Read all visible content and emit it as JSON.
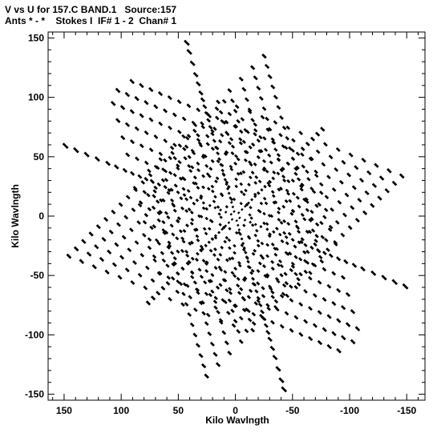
{
  "chart_data": {
    "type": "scatter",
    "title_line1": "V vs U for 157.C BAND.1   Source:157",
    "title_line2": "Ants * - *    Stokes I  IF# 1 - 2  Chan# 1",
    "xlabel": "Kilo Wavlngth",
    "ylabel": "Kilo Wavlngth",
    "xlim": [
      164,
      -166
    ],
    "ylim": [
      -155,
      155
    ],
    "xticks": [
      150,
      100,
      50,
      0,
      -50,
      -100,
      -150
    ],
    "yticks": [
      150,
      100,
      50,
      0,
      -50,
      -100,
      -150
    ],
    "xtick_labels": [
      "150",
      "100",
      "50",
      "0",
      "-50",
      "-100",
      "-150"
    ],
    "ytick_labels": [
      "150",
      "100",
      "50",
      "0",
      "-50",
      "-100",
      "-150"
    ],
    "arms": [
      {
        "dir": [
          0.28,
          0.96
        ],
        "radii": [
          4,
          8,
          12,
          16,
          20,
          24,
          28,
          32,
          36,
          40,
          45,
          50,
          55,
          60,
          66,
          72,
          78,
          84,
          90,
          96,
          102,
          108,
          116,
          124,
          134,
          144,
          152
        ]
      },
      {
        "dir": [
          0.93,
          0.37
        ],
        "radii": [
          4,
          9,
          14,
          19,
          24,
          30,
          36,
          42,
          48,
          54,
          60,
          66,
          72,
          78,
          84,
          90,
          97,
          104,
          112,
          120,
          130,
          140,
          150,
          160
        ]
      },
      {
        "dir": [
          0.72,
          -0.69
        ],
        "radii": [
          4,
          8,
          12,
          16,
          20,
          24,
          28,
          32,
          36,
          40,
          46,
          52,
          58,
          64,
          70,
          76,
          82,
          88,
          94,
          100,
          106
        ]
      }
    ],
    "grid_lines": [
      {
        "dir": [
          0.92,
          0.38
        ],
        "offset_dir": [
          0.28,
          0.96
        ],
        "offsets": [
          15,
          30,
          45,
          60,
          75,
          90
        ],
        "half_length": 100,
        "step": 9
      },
      {
        "dir": [
          0.72,
          -0.69
        ],
        "offset_dir": [
          0.93,
          0.37
        ],
        "offsets": [
          12,
          24,
          36,
          48,
          60,
          72,
          84
        ],
        "half_length": 95,
        "step": 9
      },
      {
        "dir": [
          0.28,
          0.96
        ],
        "offset_dir": [
          0.72,
          -0.69
        ],
        "offsets": [
          14,
          28,
          42,
          56,
          70
        ],
        "half_length": 90,
        "step": 9
      }
    ],
    "marker_color": "#000000",
    "grid": false,
    "legend": "none"
  }
}
